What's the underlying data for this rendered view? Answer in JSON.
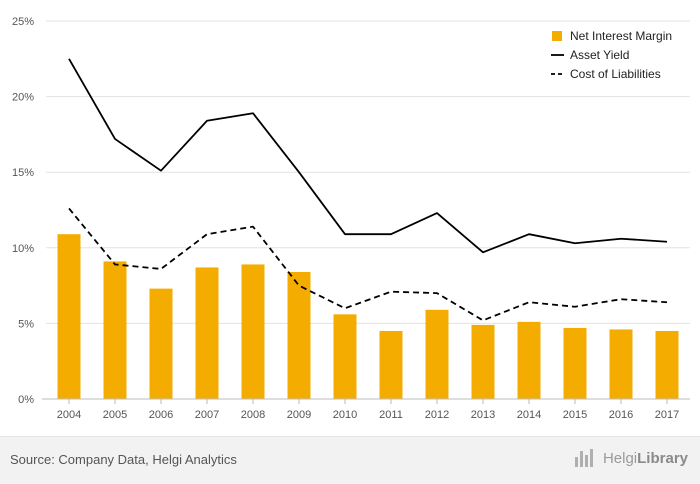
{
  "chart_data": {
    "type": "bar",
    "categories": [
      "2004",
      "2005",
      "2006",
      "2007",
      "2008",
      "2009",
      "2010",
      "2011",
      "2012",
      "2013",
      "2014",
      "2015",
      "2016",
      "2017"
    ],
    "series": [
      {
        "name": "Net Interest Margin",
        "kind": "bar",
        "color": "#f5ac00",
        "values": [
          10.9,
          9.1,
          7.3,
          8.7,
          8.9,
          8.4,
          5.6,
          4.5,
          5.9,
          4.9,
          5.1,
          4.7,
          4.6,
          4.5
        ]
      },
      {
        "name": "Asset Yield",
        "kind": "line",
        "style": "solid",
        "color": "#000000",
        "values": [
          22.5,
          17.2,
          15.1,
          18.4,
          18.9,
          15.0,
          10.9,
          10.9,
          12.3,
          9.7,
          10.9,
          10.3,
          10.6,
          10.4
        ]
      },
      {
        "name": "Cost of Liabilities",
        "kind": "line",
        "style": "dashed",
        "color": "#000000",
        "values": [
          12.6,
          8.9,
          8.6,
          10.9,
          11.4,
          7.5,
          6.0,
          7.1,
          7.0,
          5.2,
          6.4,
          6.1,
          6.6,
          6.4
        ]
      }
    ],
    "y_ticks": [
      "0%",
      "5%",
      "10%",
      "15%",
      "20%",
      "25%"
    ],
    "ylim": [
      0,
      25
    ],
    "grid": true,
    "legend_position": "top-right",
    "title": "",
    "xlabel": "",
    "ylabel": ""
  },
  "footer": {
    "source": "Source: Company Data, Helgi Analytics",
    "brand_light": "Helgi",
    "brand_bold": "Library"
  }
}
